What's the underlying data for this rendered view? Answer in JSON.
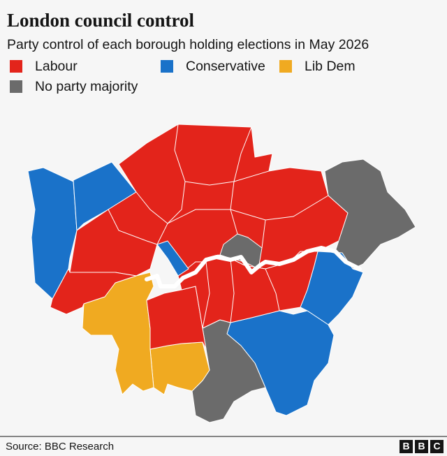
{
  "header": {
    "title": "London council control",
    "subtitle": "Party control of each borough holding elections in May 2026"
  },
  "legend": [
    {
      "label": "Labour",
      "color": "#e3241b"
    },
    {
      "label": "Conservative",
      "color": "#1a72c9"
    },
    {
      "label": "Lib Dem",
      "color": "#f0aa21"
    },
    {
      "label": "No party majority",
      "color": "#6b6b6b"
    }
  ],
  "footer": {
    "source": "Source: BBC Research",
    "logo": [
      "B",
      "B",
      "C"
    ]
  }
}
